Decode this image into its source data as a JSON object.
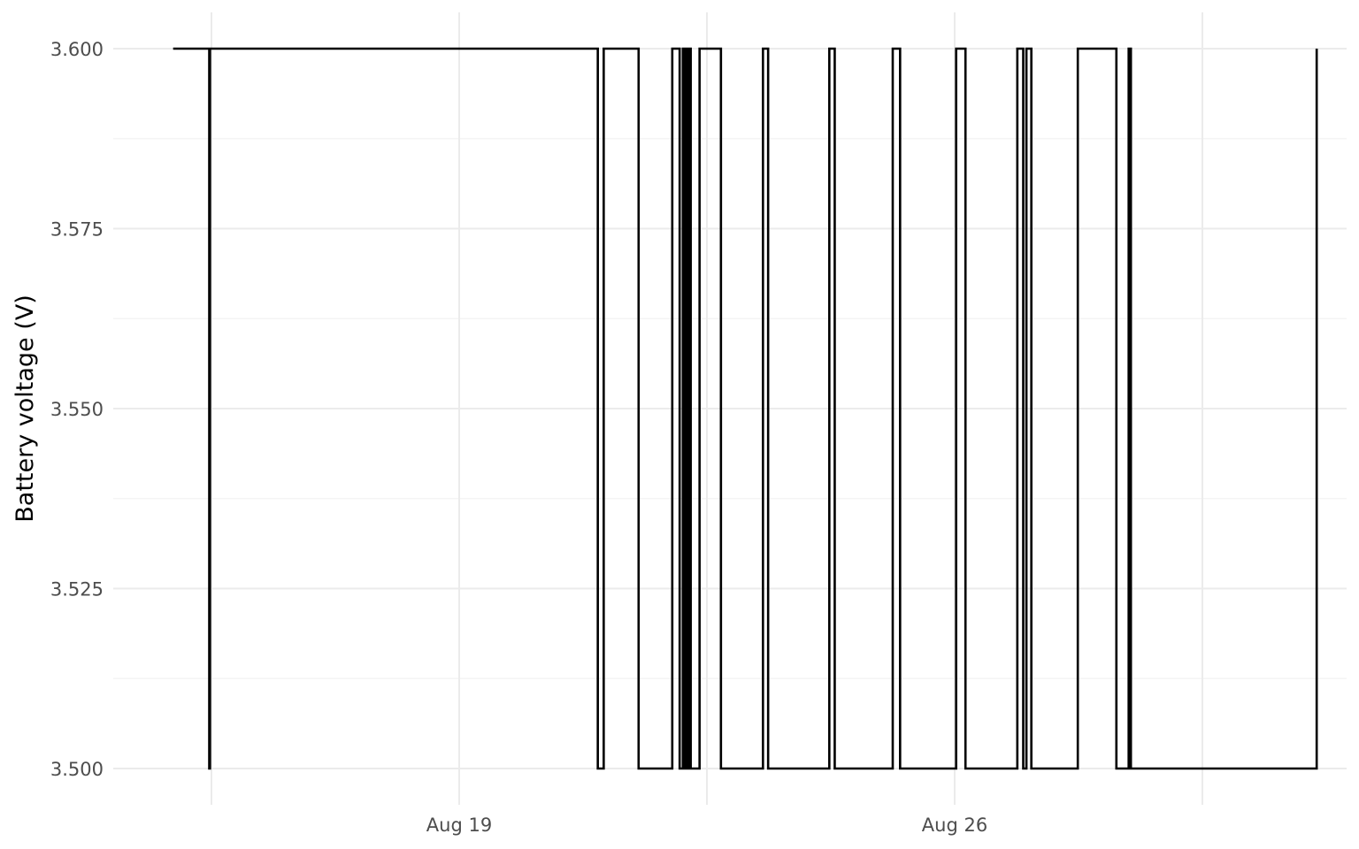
{
  "chart_data": {
    "type": "line",
    "step": true,
    "title": "",
    "xlabel": "",
    "ylabel": "Battery voltage (V)",
    "x_axis": {
      "type": "date",
      "range": [
        "2024-08-14",
        "2024-08-31"
      ],
      "major_ticks": [
        {
          "x": "2024-08-19",
          "label": "Aug 19"
        },
        {
          "x": "2024-08-26",
          "label": "Aug 26"
        }
      ],
      "minor_gridlines": [
        "2024-08-15T12:00",
        "2024-08-22T12:00",
        "2024-08-29T12:00"
      ]
    },
    "y_axis": {
      "range": [
        3.5,
        3.6
      ],
      "ticks": [
        {
          "y": 3.5,
          "label": "3.500"
        },
        {
          "y": 3.525,
          "label": "3.525"
        },
        {
          "y": 3.55,
          "label": "3.550"
        },
        {
          "y": 3.575,
          "label": "3.575"
        },
        {
          "y": 3.6,
          "label": "3.600"
        }
      ],
      "minor_gridlines": [
        3.5125,
        3.5375,
        3.5625,
        3.5875
      ]
    },
    "grid": true,
    "legend": "none",
    "series": [
      {
        "color": "#000000",
        "points": [
          [
            "2024-08-14T23:00",
            3.6
          ],
          [
            "2024-08-15T11:15",
            3.5
          ],
          [
            "2024-08-15T11:30",
            3.6
          ],
          [
            "2024-08-20T23:00",
            3.5
          ],
          [
            "2024-08-21T01:00",
            3.6
          ],
          [
            "2024-08-21T12:50",
            3.5
          ],
          [
            "2024-08-22T00:15",
            3.6
          ],
          [
            "2024-08-22T02:45",
            3.5
          ],
          [
            "2024-08-22T03:50",
            3.6
          ],
          [
            "2024-08-22T04:20",
            3.5
          ],
          [
            "2024-08-22T04:50",
            3.6
          ],
          [
            "2024-08-22T05:15",
            3.5
          ],
          [
            "2024-08-22T05:45",
            3.6
          ],
          [
            "2024-08-22T06:30",
            3.5
          ],
          [
            "2024-08-22T09:30",
            3.6
          ],
          [
            "2024-08-22T16:45",
            3.5
          ],
          [
            "2024-08-23T07:00",
            3.6
          ],
          [
            "2024-08-23T08:45",
            3.5
          ],
          [
            "2024-08-24T05:30",
            3.6
          ],
          [
            "2024-08-24T07:20",
            3.5
          ],
          [
            "2024-08-25T03:00",
            3.6
          ],
          [
            "2024-08-25T05:30",
            3.5
          ],
          [
            "2024-08-26T00:30",
            3.6
          ],
          [
            "2024-08-26T03:40",
            3.5
          ],
          [
            "2024-08-26T21:15",
            3.6
          ],
          [
            "2024-08-26T23:15",
            3.5
          ],
          [
            "2024-08-27T00:20",
            3.6
          ],
          [
            "2024-08-27T02:00",
            3.5
          ],
          [
            "2024-08-27T17:45",
            3.6
          ],
          [
            "2024-08-28T06:50",
            3.5
          ],
          [
            "2024-08-28T11:00",
            3.6
          ],
          [
            "2024-08-28T11:45",
            3.5
          ],
          [
            "2024-08-31T02:45",
            3.6
          ]
        ]
      }
    ]
  }
}
